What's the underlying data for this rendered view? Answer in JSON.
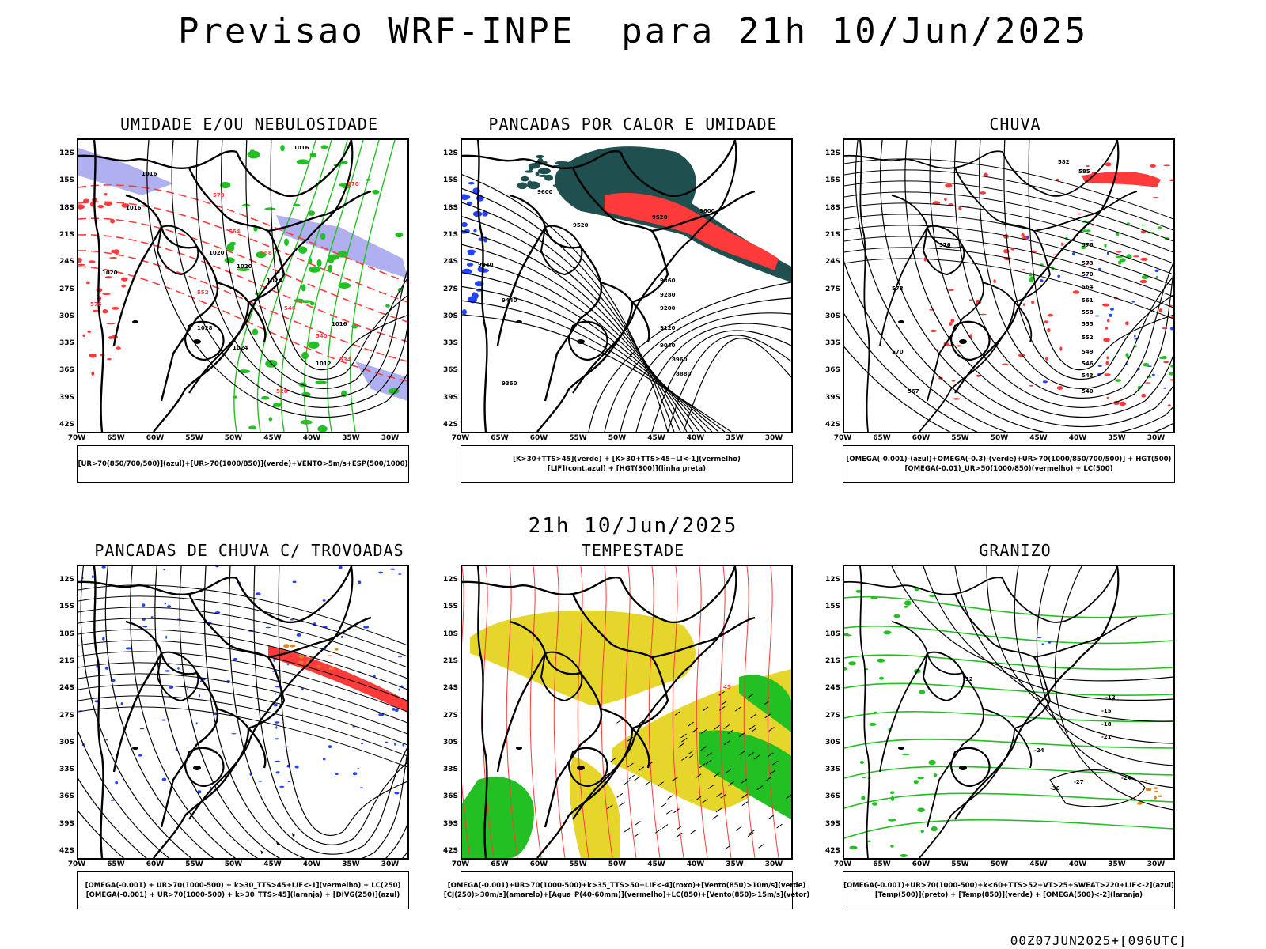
{
  "page": {
    "title": "Previsao WRF-INPE  para 21h 10/Jun/2025",
    "mid_date": "21h 10/Jun/2025",
    "run_info": "00Z07JUN2025+[096UTC]"
  },
  "axes": {
    "lat_labels": [
      "12S",
      "15S",
      "18S",
      "21S",
      "24S",
      "27S",
      "30S",
      "33S",
      "36S",
      "39S",
      "42S"
    ],
    "lon_labels": [
      "70W",
      "65W",
      "60W",
      "55W",
      "50W",
      "45W",
      "40W",
      "35W",
      "30W"
    ]
  },
  "colors": {
    "green": "#22c022",
    "red": "#ff3a3a",
    "blue": "#2244ff",
    "lavender": "#b0b0f0",
    "darkteal": "#1f4f4f",
    "yellow": "#e6d62c",
    "orange": "#e08020",
    "black": "#000000"
  },
  "panels": [
    {
      "id": "umidade",
      "title": "UMIDADE E/OU NEBULOSIDADE",
      "legend": [
        "[UR>70(850/700/500)](azul)+[UR>70(1000/850)](verde)+VENTO>5m/s+ESP(500/1000)"
      ],
      "contour_labels_black": [
        "1016",
        "1016",
        "1016",
        "1020",
        "1020",
        "1024",
        "1016",
        "1012",
        "1028",
        "1024",
        "1020"
      ],
      "contour_labels_red": [
        "570",
        "570",
        "564",
        "558",
        "552",
        "546",
        "540",
        "534",
        "528",
        "576"
      ]
    },
    {
      "id": "pancadas-calor",
      "title": "PANCADAS POR CALOR E UMIDADE",
      "legend": [
        "[K>30+TTS>45](verde) + [K>30+TTS>45+LI<-1](vermelho)",
        "[LIF](cont.azul) + [HGT(300)](linha preta)"
      ],
      "contour_labels_black": [
        "9600",
        "9520",
        "9520",
        "9600",
        "9440",
        "9440",
        "9360",
        "9280",
        "9200",
        "9120",
        "9040",
        "8960",
        "8880",
        "9360"
      ]
    },
    {
      "id": "chuva",
      "title": "CHUVA",
      "legend": [
        "[OMEGA(-0.001)-(azul)+OMEGA(-0.3)-(verde)+UR>70(1000/850/700/500)] + HGT(500)",
        "[OMEGA(-0.01)_UR>50(1000/850)(vermelho) + LC(500)"
      ],
      "contour_labels_black": [
        "582",
        "585",
        "576",
        "576",
        "573",
        "570",
        "567",
        "573",
        "570",
        "564",
        "561",
        "558",
        "555",
        "552",
        "549",
        "546",
        "543",
        "540"
      ]
    },
    {
      "id": "pancadas-trovoadas",
      "title": "PANCADAS DE CHUVA C/ TROVOADAS",
      "legend": [
        "[OMEGA(-0.001) + UR>70(1000-500) + k>30_TTS>45+LIF<-1](vermelho) + LC(250)",
        "[OMEGA(-0.001) + UR>70(1000-500) + k>30_TTS>45](laranja) + [DIVG(250)](azul)"
      ]
    },
    {
      "id": "tempestade",
      "title": "TEMPESTADE",
      "legend": [
        "[OMEGA(-0.001)+UR>70(1000-500)+k>35_TTS>50+LIF<-4](roxo)+[Vento(850)>10m/s](verde)",
        "[CJ(250)>30m/s](amarelo)+[Agua_P(40-60mm)](vermelho)+LC(850)+[Vento(850)>15m/s](vetor)"
      ],
      "contour_labels_red": [
        "45"
      ]
    },
    {
      "id": "granizo",
      "title": "GRANIZO",
      "legend": [
        "[OMEGA(-0.001)+UR>70(1000-500)+k<60+TTS>52+VT>25+SWEAT>220+LIF<-2](azul)",
        "[Temp(500)](preto) + [Temp(850)](verde) + [OMEGA(500)<-2](laranja)"
      ],
      "contour_labels_black": [
        "-12",
        "-12",
        "-15",
        "-18",
        "-21",
        "-24",
        "-27",
        "-30",
        "-24"
      ]
    }
  ]
}
